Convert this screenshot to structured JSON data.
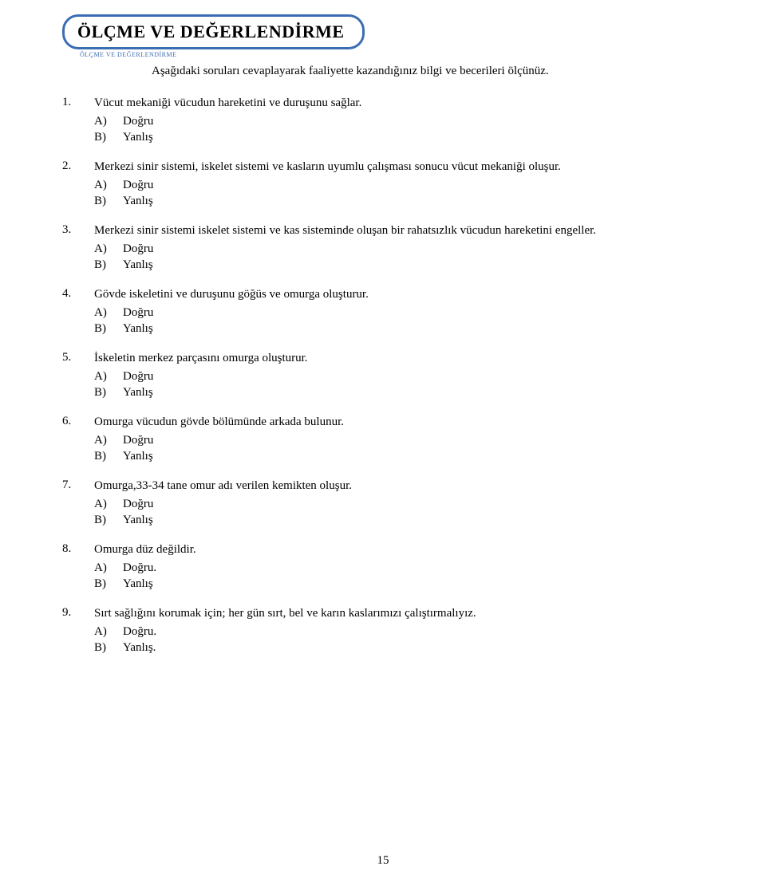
{
  "header": {
    "title": "ÖLÇME VE DEĞERLENDİRME",
    "subtitle": "ÖLÇME VE DEĞERLENDİRME"
  },
  "intro": "Aşağıdaki soruları cevaplayarak faaliyette kazandığınız bilgi ve becerileri ölçünüz.",
  "questions": [
    {
      "num": "1.",
      "text": "Vücut mekaniği vücudun hareketini ve duruşunu sağlar.",
      "opts": [
        {
          "letter": "A)",
          "label": "Doğru"
        },
        {
          "letter": "B)",
          "label": "Yanlış"
        }
      ]
    },
    {
      "num": "2.",
      "text": "Merkezi sinir sistemi, iskelet sistemi ve kasların uyumlu çalışması sonucu vücut mekaniği oluşur.",
      "opts": [
        {
          "letter": "A)",
          "label": "Doğru"
        },
        {
          "letter": "B)",
          "label": "Yanlış"
        }
      ]
    },
    {
      "num": "3.",
      "text": "Merkezi sinir sistemi iskelet sistemi ve kas sisteminde oluşan bir rahatsızlık vücudun hareketini engeller.",
      "opts": [
        {
          "letter": "A)",
          "label": "Doğru"
        },
        {
          "letter": "B)",
          "label": "Yanlış"
        }
      ]
    },
    {
      "num": "4.",
      "text": "Gövde iskeletini ve duruşunu göğüs ve omurga oluşturur.",
      "opts": [
        {
          "letter": "A)",
          "label": "Doğru"
        },
        {
          "letter": "B)",
          "label": "Yanlış"
        }
      ]
    },
    {
      "num": "5.",
      "text": "İskeletin merkez parçasını omurga oluşturur.",
      "opts": [
        {
          "letter": "A)",
          "label": "Doğru"
        },
        {
          "letter": "B)",
          "label": "Yanlış"
        }
      ]
    },
    {
      "num": "6.",
      "text": "Omurga vücudun gövde bölümünde arkada bulunur.",
      "opts": [
        {
          "letter": "A)",
          "label": "Doğru"
        },
        {
          "letter": "B)",
          "label": "Yanlış"
        }
      ]
    },
    {
      "num": "7.",
      "text": "Omurga,33-34 tane omur adı verilen kemikten oluşur.",
      "opts": [
        {
          "letter": "A)",
          "label": "Doğru"
        },
        {
          "letter": "B)",
          "label": "Yanlış"
        }
      ]
    },
    {
      "num": "8.",
      "text": "Omurga düz değildir.",
      "opts": [
        {
          "letter": "A)",
          "label": "Doğru."
        },
        {
          "letter": "B)",
          "label": "Yanlış"
        }
      ]
    },
    {
      "num": "9.",
      "text": "Sırt sağlığını korumak için; her gün sırt, bel ve karın kaslarımızı çalıştırmalıyız.",
      "opts": [
        {
          "letter": "A)",
          "label": "Doğru."
        },
        {
          "letter": "B)",
          "label": "Yanlış."
        }
      ]
    }
  ],
  "page_number": "15"
}
